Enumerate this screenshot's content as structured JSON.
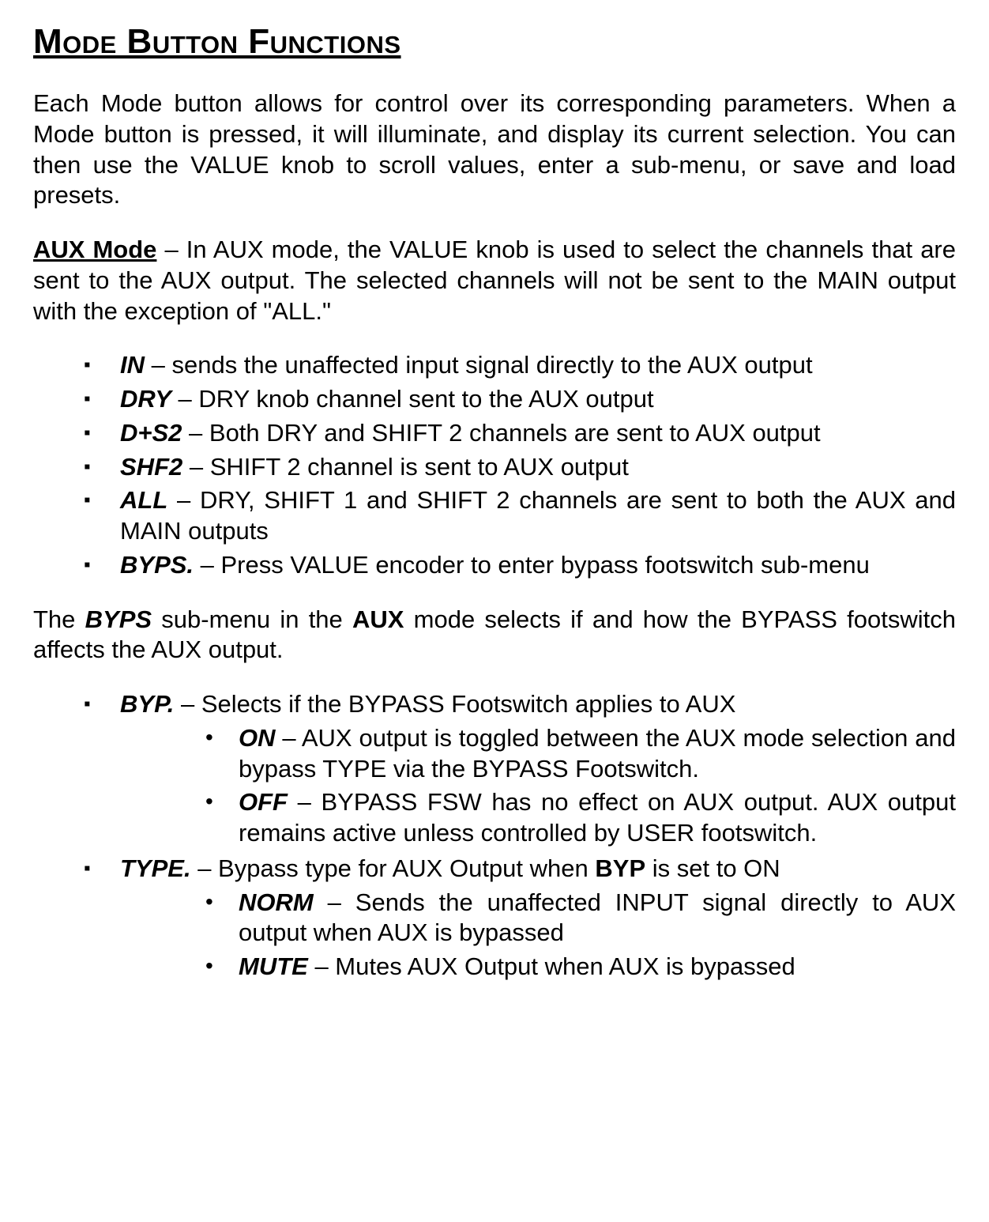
{
  "title": "Mode Button Functions",
  "intro": "Each Mode button allows for control over its corresponding parameters. When a Mode button is pressed, it will illuminate, and display its current selection. You can then use the VALUE knob to scroll values, enter a sub-menu, or save and load presets.",
  "aux": {
    "head": "AUX Mode",
    "head_rest": " – In AUX mode, the VALUE knob is used to select the channels that are sent to the AUX output. The selected channels will not be sent to the MAIN output with the exception of \"ALL.\"",
    "items": [
      {
        "term": "IN",
        "desc": " – sends the unaffected input signal directly to the AUX output"
      },
      {
        "term": "DRY",
        "desc": " – DRY knob channel sent to the AUX output"
      },
      {
        "term": "D+S2",
        "desc": " – Both DRY and SHIFT 2 channels are sent to AUX output"
      },
      {
        "term": "SHF2",
        "desc": " – SHIFT 2 channel is sent to AUX output"
      },
      {
        "term": "ALL",
        "desc": " – DRY, SHIFT 1 and SHIFT 2 channels are sent to both the AUX and MAIN outputs"
      },
      {
        "term": "BYPS.",
        "desc": " – Press VALUE encoder to enter bypass footswitch sub-menu"
      }
    ]
  },
  "byps_intro": {
    "pre": "The ",
    "term": "BYPS",
    "mid": " sub-menu in the ",
    "aux": "AUX",
    "post": " mode selects if and how the BYPASS footswitch affects the AUX output."
  },
  "byps": {
    "items": [
      {
        "term": "BYP.",
        "desc": " – Selects if the BYPASS Footswitch applies to AUX",
        "sub": [
          {
            "term": "ON",
            "desc": " – AUX output is toggled between the AUX mode selection and bypass TYPE via the BYPASS Footswitch."
          },
          {
            "term": "OFF",
            "desc": " – BYPASS FSW has no effect on AUX output. AUX output remains active unless controlled by USER footswitch."
          }
        ]
      },
      {
        "term": "TYPE.",
        "desc_pre": " – Bypass type for AUX Output when ",
        "desc_bold": "BYP",
        "desc_post": " is set to ON",
        "sub": [
          {
            "term": "NORM",
            "desc": " – Sends the unaffected INPUT signal directly to AUX output when AUX is bypassed"
          },
          {
            "term": "MUTE",
            "desc": " – Mutes AUX Output when AUX is bypassed"
          }
        ]
      }
    ]
  }
}
